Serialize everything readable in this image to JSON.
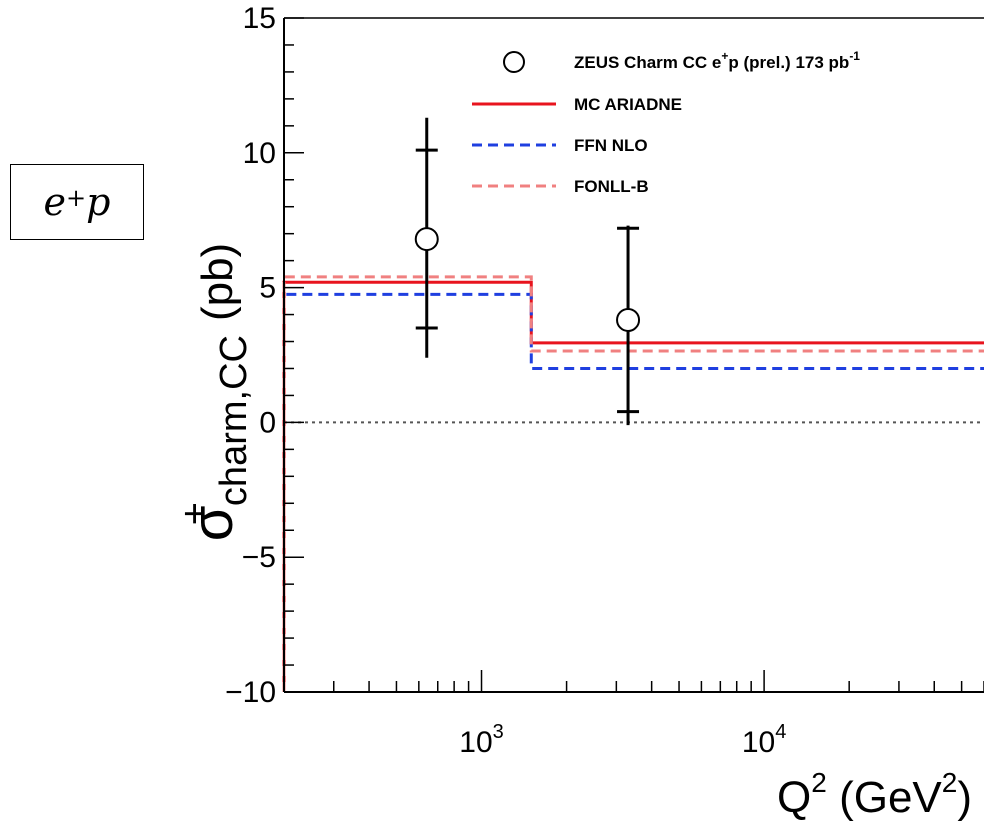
{
  "chart_data": {
    "type": "line",
    "xscale": "log",
    "xlim": [
      200,
      60000
    ],
    "ylim": [
      -10,
      15
    ],
    "grid": false,
    "xlabel": {
      "main": "Q",
      "sup1": "2",
      "mid": " (GeV",
      "sup2": "2",
      "end": ")"
    },
    "ylabel": {
      "sigma": "σ",
      "sup": "+",
      "sub": "charm,CC",
      "unit": "(pb)"
    },
    "yticks": [
      -10,
      -5,
      0,
      5,
      10,
      15
    ],
    "ytick_labels": [
      "−10",
      "−5",
      "0",
      "5",
      "10",
      "15"
    ],
    "xticks": [
      {
        "value": 1000,
        "base": "10",
        "exp": "3"
      },
      {
        "value": 10000,
        "base": "10",
        "exp": "4"
      }
    ],
    "reference_line": {
      "y": 0,
      "color": "#555555",
      "style": "dotted"
    },
    "series": [
      {
        "name": "ZEUS Charm CC e⁺p (prel.) 173 pb⁻¹",
        "kind": "points",
        "color": "#000000",
        "points": [
          {
            "x": 640,
            "y": 6.8,
            "stat_low": 3.5,
            "stat_high": 10.1,
            "tot_low": 2.4,
            "tot_high": 11.3
          },
          {
            "x": 3300,
            "y": 3.8,
            "stat_low": 0.4,
            "stat_high": 7.2,
            "tot_low": -0.1,
            "tot_high": 7.3
          }
        ]
      },
      {
        "name": "MC ARIADNE",
        "kind": "step",
        "color": "#e8141e",
        "style": "solid",
        "bin_edges": [
          200,
          1500,
          60000
        ],
        "values": [
          5.2,
          2.95
        ]
      },
      {
        "name": "FFN NLO",
        "kind": "step",
        "color": "#1f3fe0",
        "style": "dashed",
        "bin_edges": [
          200,
          1500,
          60000
        ],
        "values": [
          4.75,
          2.0
        ]
      },
      {
        "name": "FONLL-B",
        "kind": "step",
        "color": "#f08080",
        "style": "dashed",
        "bin_edges": [
          200,
          1500,
          60000
        ],
        "values": [
          5.4,
          2.65
        ]
      }
    ],
    "legend_position": "top-right",
    "legend": [
      {
        "label_main": "ZEUS Charm CC e",
        "label_sup1": "+",
        "label_mid": "p (prel.) 173 pb",
        "label_sup2": "-1"
      },
      {
        "label_main": "MC ARIADNE"
      },
      {
        "label_main": "FFN NLO"
      },
      {
        "label_main": "FONLL-B"
      }
    ]
  },
  "annotation": {
    "beam": "e",
    "beam_sup": "+",
    "beam_target": "p"
  }
}
